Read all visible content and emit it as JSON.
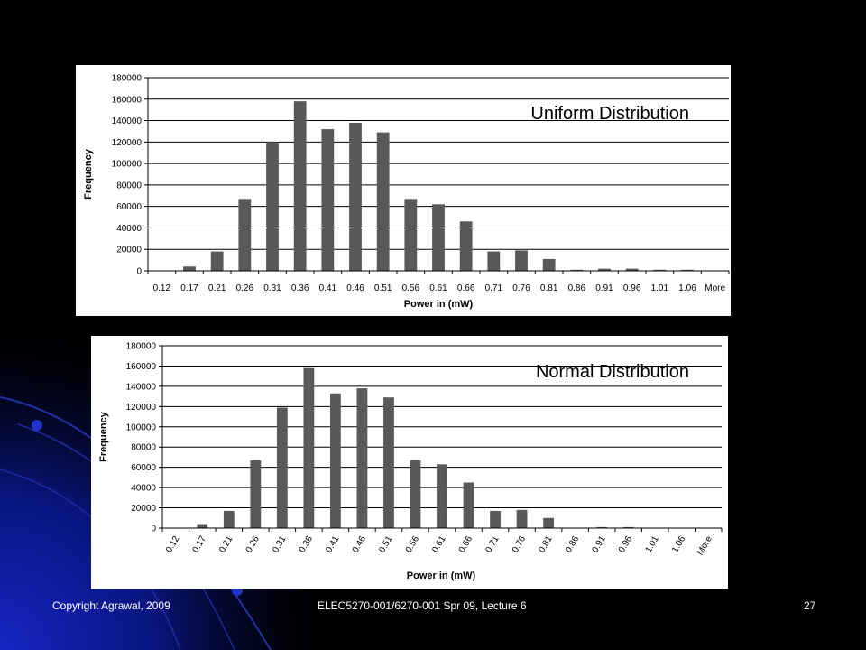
{
  "slide": {
    "footer_left": "Copyright Agrawal, 2009",
    "footer_center": "ELEC5270-001/6270-001  Spr 09, Lecture 6",
    "page_number": "27"
  },
  "colors": {
    "background": "#000000",
    "plot_area": "#ffffff",
    "bar": "#595959",
    "gridline": "#000000",
    "accent_blue": "#1a2aa6"
  },
  "chart_data": [
    {
      "type": "bar",
      "title": "Uniform Distribution",
      "xlabel": "Power in (mW)",
      "ylabel": "Frequency",
      "ylim": [
        0,
        180000
      ],
      "yticks": [
        0,
        20000,
        40000,
        60000,
        80000,
        100000,
        120000,
        140000,
        160000,
        180000
      ],
      "grid": true,
      "tick_rotation": 0,
      "categories": [
        "0.12",
        "0.17",
        "0.21",
        "0.26",
        "0.31",
        "0.36",
        "0.41",
        "0.46",
        "0.51",
        "0.56",
        "0.61",
        "0.66",
        "0.71",
        "0.76",
        "0.81",
        "0.86",
        "0.91",
        "0.96",
        "1.01",
        "1.06",
        "More"
      ],
      "values": [
        0,
        4000,
        18000,
        67000,
        120000,
        158000,
        132000,
        138000,
        129000,
        67000,
        62000,
        46000,
        18000,
        19000,
        11000,
        1000,
        2000,
        2000,
        1000,
        1000,
        0
      ]
    },
    {
      "type": "bar",
      "title": "Normal Distribution",
      "xlabel": "Power in (mW)",
      "ylabel": "Frequency",
      "ylim": [
        0,
        180000
      ],
      "yticks": [
        0,
        20000,
        40000,
        60000,
        80000,
        100000,
        120000,
        140000,
        160000,
        180000
      ],
      "grid": true,
      "tick_rotation": -60,
      "categories": [
        "0.12",
        "0.17",
        "0.21",
        "0.26",
        "0.31",
        "0.36",
        "0.41",
        "0.46",
        "0.51",
        "0.56",
        "0.61",
        "0.66",
        "0.71",
        "0.76",
        "0.81",
        "0.86",
        "0.91",
        "0.96",
        "1.01",
        "1.06",
        "More"
      ],
      "values": [
        0,
        4000,
        17000,
        67000,
        119000,
        158000,
        133000,
        138000,
        129000,
        67000,
        63000,
        45000,
        17000,
        18000,
        10000,
        0,
        1000,
        1000,
        0,
        0,
        0
      ]
    }
  ]
}
